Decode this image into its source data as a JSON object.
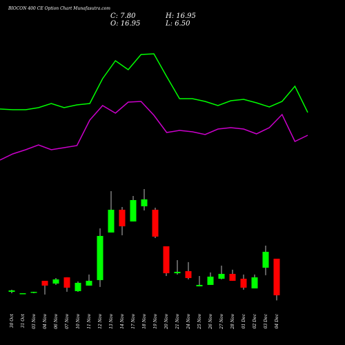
{
  "chart_data": {
    "type": "candlestick",
    "title": "BIOCON 400 CE Option Chart Munafasutra.com",
    "info": {
      "close_label": "C: 7.80",
      "high_label": "H: 16.95",
      "open_label": "O: 16.95",
      "low_label": "L: 6.50"
    },
    "categories": [
      "30 Oct",
      "31 Oct",
      "03 Nov",
      "04 Nov",
      "06 Nov",
      "07 Nov",
      "10 Nov",
      "11 Nov",
      "12 Nov",
      "13 Nov",
      "14 Nov",
      "17 Nov",
      "18 Nov",
      "19 Nov",
      "20 Nov",
      "21 Nov",
      "24 Nov",
      "25 Nov",
      "26 Nov",
      "27 Nov",
      "28 Nov",
      "01 Dec",
      "02 Dec",
      "03 Dec",
      "04 Dec"
    ],
    "open": [
      8.66,
      8.14,
      8.49,
      11.42,
      10.73,
      12.29,
      8.83,
      10.22,
      11.6,
      23.51,
      29.21,
      26.28,
      30.08,
      29.21,
      20.06,
      13.32,
      13.84,
      10.04,
      10.39,
      11.94,
      13.15,
      11.94,
      9.52,
      14.7,
      16.95
    ],
    "high": [
      9.18,
      8.31,
      8.66,
      11.25,
      12.11,
      12.29,
      11.25,
      12.98,
      24.55,
      33.87,
      29.9,
      32.66,
      34.39,
      29.73,
      20.06,
      16.6,
      16.09,
      12.63,
      13.5,
      15.22,
      14.19,
      12.98,
      12.98,
      20.23,
      16.95
    ],
    "low": [
      8.31,
      8.14,
      8.31,
      7.97,
      10.39,
      8.66,
      8.66,
      10.22,
      9.87,
      23.51,
      22.82,
      26.28,
      29.04,
      22.13,
      12.63,
      12.98,
      11.77,
      10.04,
      10.39,
      11.77,
      11.42,
      9.18,
      9.52,
      12.81,
      6.5
    ],
    "close": [
      9.01,
      8.31,
      8.66,
      10.22,
      11.77,
      9.7,
      10.91,
      11.42,
      22.65,
      29.21,
      25.07,
      31.63,
      31.8,
      22.48,
      13.32,
      13.67,
      12.11,
      10.39,
      12.46,
      13.15,
      11.42,
      9.7,
      12.29,
      18.68,
      7.8
    ],
    "up_color": "#00ff00",
    "down_color": "#ff0000",
    "ylim": [
      4,
      38
    ],
    "series": [
      {
        "color": "#00ff00",
        "values": [
          41,
          40.5,
          40.5,
          42,
          45,
          42,
          44,
          45,
          63,
          76,
          69.5,
          80.5,
          81,
          64.5,
          48.5,
          48.5,
          46.5,
          43.5,
          47,
          48,
          45.5,
          42.5,
          46.5,
          57.5,
          38.5
        ]
      },
      {
        "color": "#cc00cc",
        "values": [
          4,
          8.5,
          11.5,
          15,
          11.5,
          13,
          14.5,
          33,
          43.5,
          38,
          46,
          46.5,
          36.5,
          24,
          25.5,
          24.5,
          22.5,
          26.5,
          27.5,
          26.5,
          23,
          27.5,
          37,
          17.5,
          22
        ]
      }
    ],
    "y2lim": [
      0,
      100
    ]
  }
}
